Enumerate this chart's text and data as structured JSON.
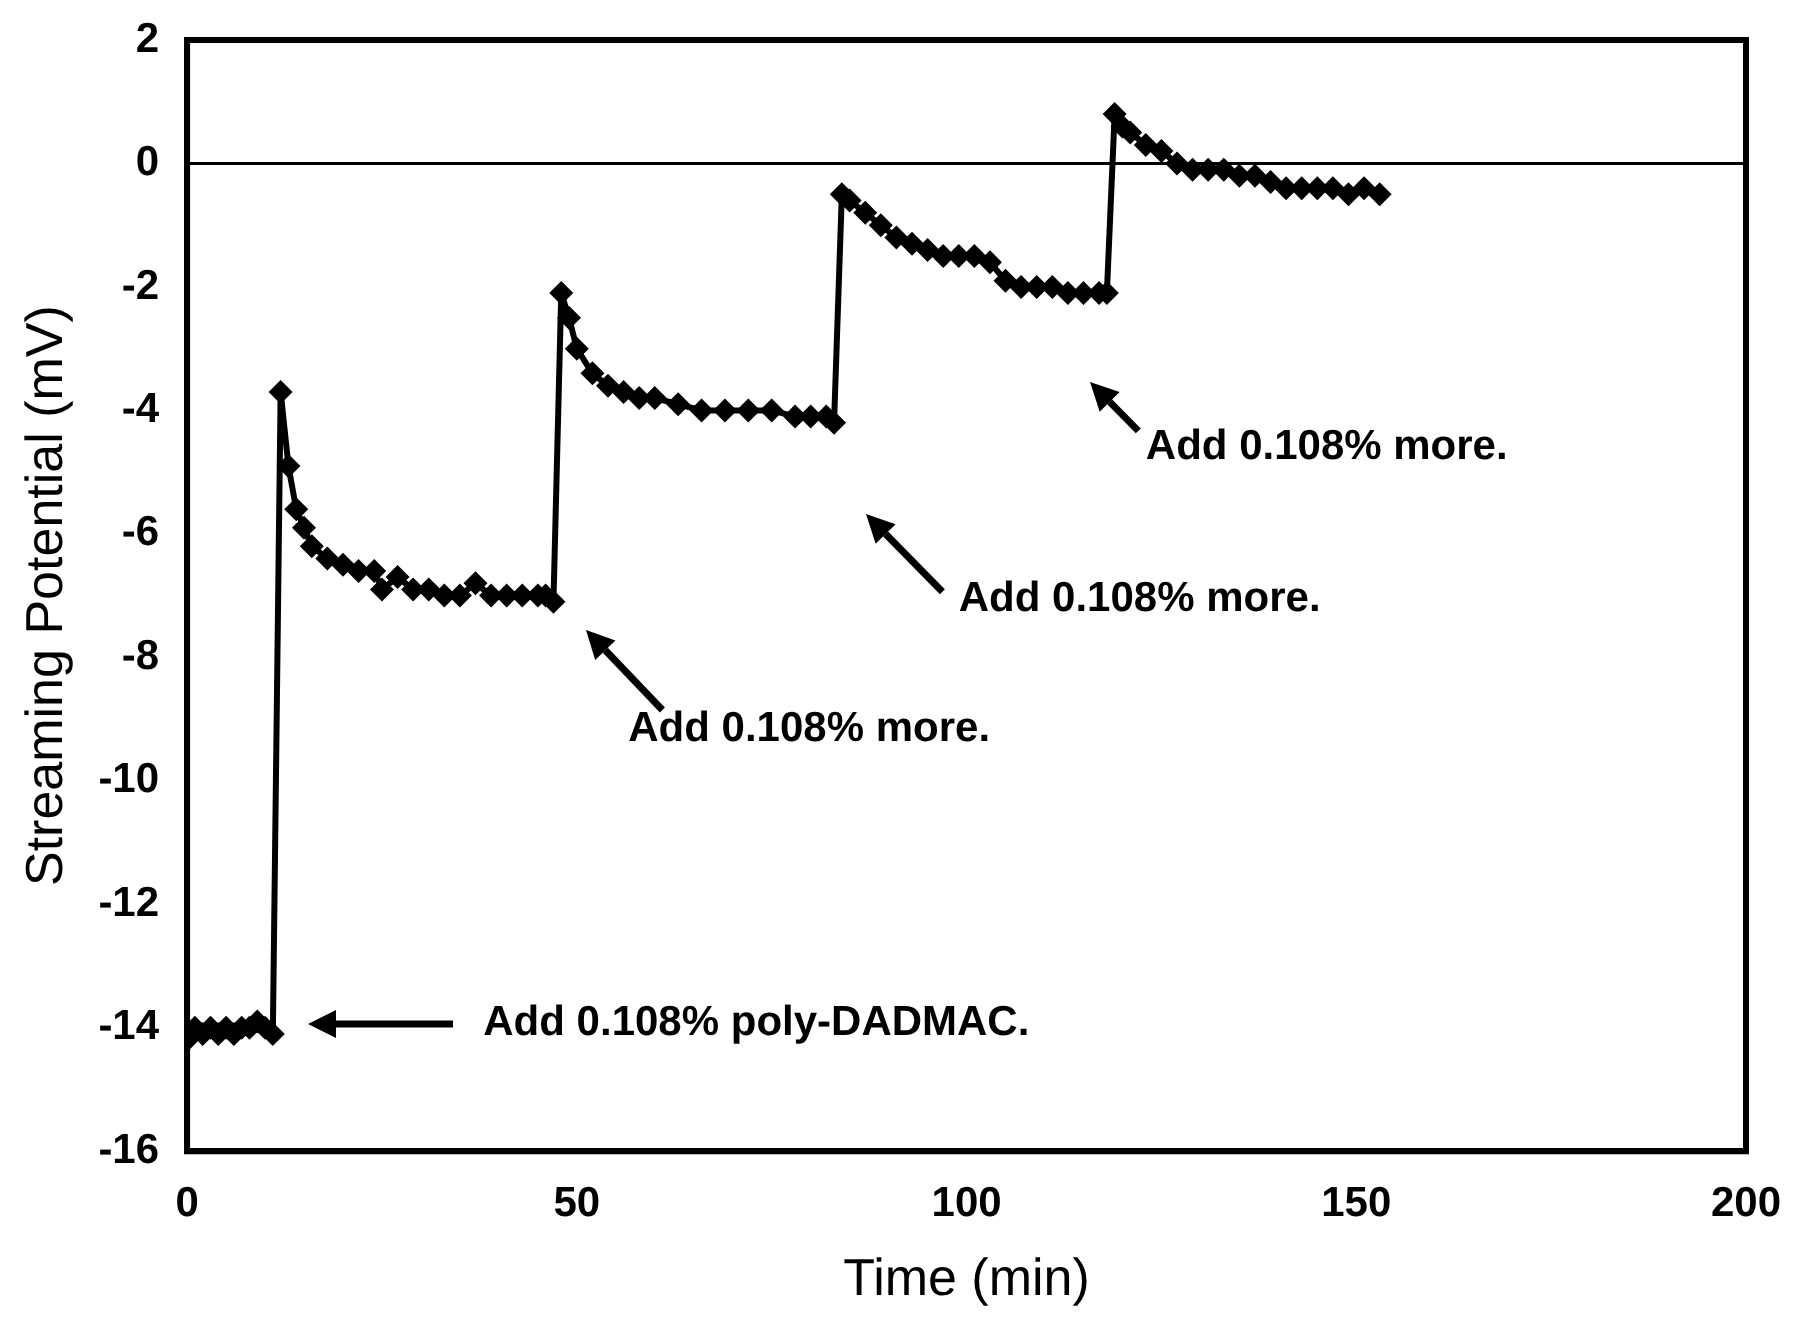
{
  "chart_data": {
    "type": "line",
    "xlabel": "Time (min)",
    "ylabel": "Streaming Potential (mV)",
    "xlim": [
      0,
      200
    ],
    "xticks": [
      0,
      50,
      100,
      150,
      200
    ],
    "ylim": [
      -16,
      2
    ],
    "yticks": [
      -16,
      -14,
      -12,
      -10,
      -8,
      -6,
      -4,
      -2,
      0,
      2
    ],
    "grid": false,
    "legend": false,
    "marker": "diamond",
    "line_style": "solid",
    "ref_lines": [
      {
        "axis": "y",
        "value": 0,
        "color": "#000000"
      }
    ],
    "annotations": [
      "Add 0.108% poly-DADMAC.",
      "Add 0.108% more.",
      "Add 0.108% more.",
      "Add 0.108% more."
    ],
    "series": [
      {
        "color": "#000000",
        "x": [
          0,
          1,
          2,
          3,
          4,
          5,
          6,
          7,
          8,
          9,
          10,
          11,
          12,
          13,
          14,
          15,
          16,
          18,
          20,
          22,
          24,
          25,
          27,
          29,
          31,
          33,
          35,
          37,
          39,
          41,
          43,
          45,
          46,
          47,
          48,
          49,
          50,
          52,
          54,
          56,
          58,
          60,
          63,
          66,
          69,
          72,
          75,
          78,
          80,
          82,
          83,
          84,
          85,
          87,
          89,
          91,
          93,
          95,
          97,
          99,
          101,
          103,
          105,
          107,
          109,
          111,
          113,
          115,
          117,
          118,
          119,
          120,
          121,
          123,
          125,
          127,
          129,
          131,
          133,
          135,
          137,
          139,
          141,
          143,
          145,
          147,
          149,
          151,
          153
        ],
        "values": [
          -14.2,
          -14.0,
          -14.1,
          -14.0,
          -14.1,
          -14.0,
          -14.1,
          -14.0,
          -14.0,
          -13.9,
          -14.0,
          -14.1,
          -3.7,
          -4.9,
          -5.6,
          -5.9,
          -6.2,
          -6.4,
          -6.5,
          -6.6,
          -6.6,
          -6.9,
          -6.7,
          -6.9,
          -6.9,
          -7.0,
          -7.0,
          -6.8,
          -7.0,
          -7.0,
          -7.0,
          -7.0,
          -7.0,
          -7.1,
          -2.1,
          -2.5,
          -3.0,
          -3.4,
          -3.6,
          -3.7,
          -3.8,
          -3.8,
          -3.9,
          -4.0,
          -4.0,
          -4.0,
          -4.0,
          -4.1,
          -4.1,
          -4.1,
          -4.2,
          -0.5,
          -0.6,
          -0.8,
          -1.0,
          -1.2,
          -1.3,
          -1.4,
          -1.5,
          -1.5,
          -1.5,
          -1.6,
          -1.9,
          -2.0,
          -2.0,
          -2.0,
          -2.1,
          -2.1,
          -2.1,
          -2.1,
          0.8,
          0.6,
          0.5,
          0.3,
          0.2,
          0.0,
          -0.1,
          -0.1,
          -0.1,
          -0.2,
          -0.2,
          -0.3,
          -0.4,
          -0.4,
          -0.4,
          -0.4,
          -0.5,
          -0.4,
          -0.5
        ]
      }
    ]
  }
}
